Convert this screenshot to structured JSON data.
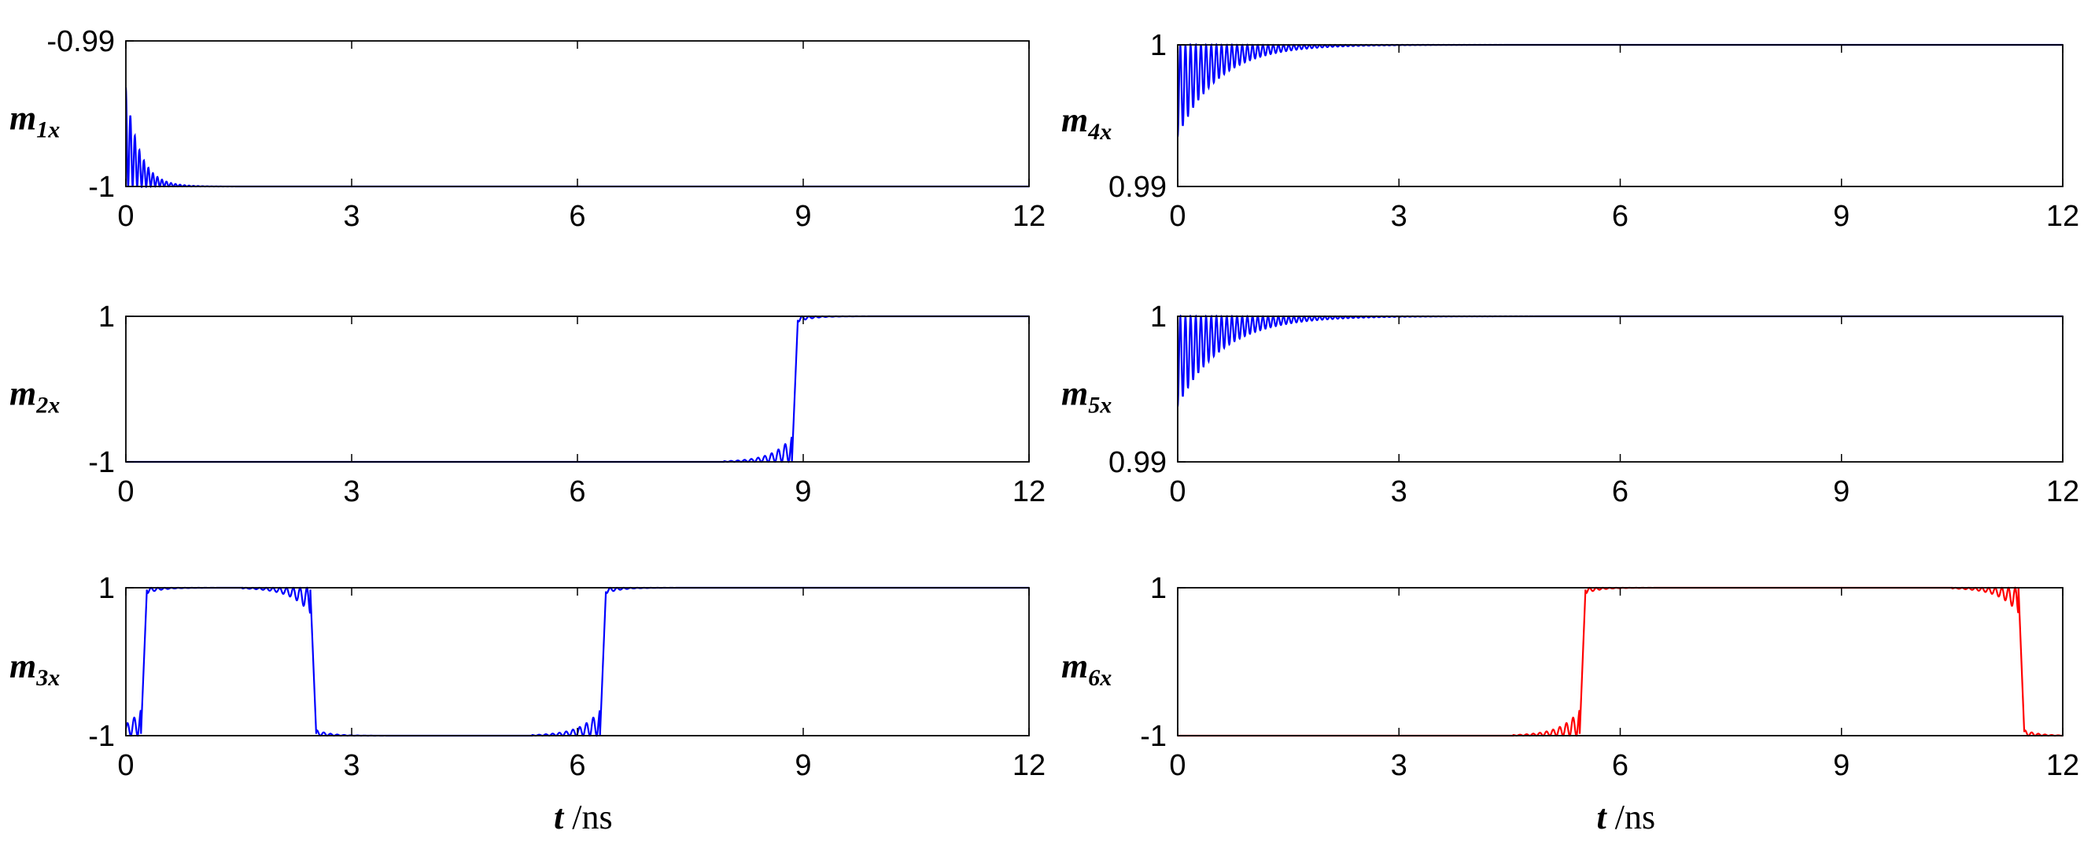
{
  "chart_data": [
    {
      "type": "line",
      "ylabel": {
        "base": "m",
        "sub": "1x"
      },
      "xlabel": "",
      "xlim": [
        0,
        12
      ],
      "ylim": [
        -1,
        -0.99
      ],
      "xticks": [
        "0",
        "3",
        "6",
        "9",
        "12"
      ],
      "yticks": [
        "-1",
        "-0.99"
      ],
      "series": [
        {
          "color": "#0000ff",
          "model": "decay",
          "base": -1,
          "amp": 0.0068,
          "tau": 0.18,
          "period": 0.06,
          "note_points": [
            [
              0,
              -0.993
            ],
            [
              0.2,
              -0.997
            ],
            [
              0.5,
              -0.9995
            ],
            [
              1.0,
              -1
            ],
            [
              12,
              -1
            ]
          ]
        }
      ]
    },
    {
      "type": "line",
      "ylabel": {
        "base": "m",
        "sub": "2x"
      },
      "xlabel": "",
      "xlim": [
        0,
        12
      ],
      "ylim": [
        -1,
        1
      ],
      "xticks": [
        "0",
        "3",
        "6",
        "9",
        "12"
      ],
      "yticks": [
        "-1",
        "1"
      ],
      "series": [
        {
          "color": "#0000ff",
          "model": "switch",
          "initial": -1,
          "switches": [
            8.85
          ],
          "points": [
            [
              0,
              -1
            ],
            [
              8.0,
              -1
            ],
            [
              8.6,
              -0.85
            ],
            [
              8.85,
              -1
            ],
            [
              8.95,
              1
            ],
            [
              12,
              1
            ]
          ]
        }
      ]
    },
    {
      "type": "line",
      "ylabel": {
        "base": "m",
        "sub": "3x"
      },
      "xlabel": "t /ns",
      "xlim": [
        0,
        12
      ],
      "ylim": [
        -1,
        1
      ],
      "xticks": [
        "0",
        "3",
        "6",
        "9",
        "12"
      ],
      "yticks": [
        "-1",
        "1"
      ],
      "series": [
        {
          "color": "#0000ff",
          "model": "switch",
          "initial": -1,
          "switches": [
            0.2,
            2.45,
            6.3
          ],
          "points": [
            [
              0,
              -1
            ],
            [
              0.15,
              -1
            ],
            [
              0.3,
              1
            ],
            [
              2.3,
              1
            ],
            [
              2.5,
              -1
            ],
            [
              6.2,
              -1
            ],
            [
              6.4,
              1
            ],
            [
              12,
              1
            ]
          ]
        }
      ]
    },
    {
      "type": "line",
      "ylabel": {
        "base": "m",
        "sub": "4x"
      },
      "xlabel": "",
      "xlim": [
        0,
        12
      ],
      "ylim": [
        0.99,
        1
      ],
      "xticks": [
        "0",
        "3",
        "6",
        "9",
        "12"
      ],
      "yticks": [
        "0.99",
        "1"
      ],
      "series": [
        {
          "color": "#0000ff",
          "model": "decay",
          "base": 1,
          "amp": -0.0065,
          "tau": 0.55,
          "period": 0.07,
          "note_points": [
            [
              0,
              0.9935
            ],
            [
              0.5,
              0.997
            ],
            [
              1.5,
              0.9995
            ],
            [
              3,
              1
            ],
            [
              12,
              1
            ]
          ]
        }
      ]
    },
    {
      "type": "line",
      "ylabel": {
        "base": "m",
        "sub": "5x"
      },
      "xlabel": "",
      "xlim": [
        0,
        12
      ],
      "ylim": [
        0.99,
        1
      ],
      "xticks": [
        "0",
        "3",
        "6",
        "9",
        "12"
      ],
      "yticks": [
        "0.99",
        "1"
      ],
      "series": [
        {
          "color": "#0000ff",
          "model": "decay",
          "base": 1,
          "amp": -0.0062,
          "tau": 0.6,
          "period": 0.07,
          "note_points": [
            [
              0,
              0.9938
            ],
            [
              0.5,
              0.997
            ],
            [
              1.5,
              0.9995
            ],
            [
              3,
              1
            ],
            [
              12,
              1
            ]
          ]
        }
      ]
    },
    {
      "type": "line",
      "ylabel": {
        "base": "m",
        "sub": "6x"
      },
      "xlabel": "t /ns",
      "xlim": [
        0,
        12
      ],
      "ylim": [
        -1,
        1
      ],
      "xticks": [
        "0",
        "3",
        "6",
        "9",
        "12"
      ],
      "yticks": [
        "-1",
        "1"
      ],
      "series": [
        {
          "color": "#ff0000",
          "model": "switch",
          "initial": -1,
          "switches": [
            5.45,
            11.4
          ],
          "points": [
            [
              0,
              -1
            ],
            [
              4.5,
              -1
            ],
            [
              5.3,
              -0.8
            ],
            [
              5.45,
              -1
            ],
            [
              5.55,
              1
            ],
            [
              11.2,
              1
            ],
            [
              11.35,
              0.6
            ],
            [
              11.45,
              -0.5
            ],
            [
              12,
              -1
            ]
          ]
        }
      ]
    }
  ]
}
